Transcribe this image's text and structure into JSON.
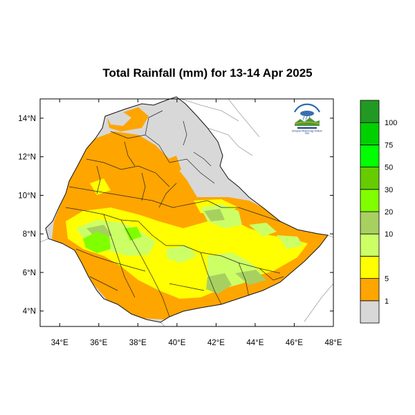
{
  "title": "Total Rainfall (mm) for 13-14 Apr 2025",
  "map": {
    "x_ticks": [
      "34°E",
      "36°E",
      "38°E",
      "40°E",
      "42°E",
      "44°E",
      "46°E",
      "48°E"
    ],
    "y_ticks": [
      "14°N",
      "12°N",
      "10°N",
      "8°N",
      "6°N",
      "4°N"
    ],
    "lon_range": [
      33,
      48
    ],
    "lat_range": [
      3.2,
      15
    ]
  },
  "colorbar": {
    "labels": [
      "1",
      "5",
      "10",
      "20",
      "30",
      "50",
      "75",
      "100"
    ],
    "colors": [
      "#d8d8d8",
      "#ffa500",
      "#ffff00",
      "#ccff66",
      "#a8d060",
      "#80ff00",
      "#66cc00",
      "#00ff00",
      "#00d000",
      "#229922"
    ]
  },
  "logo": {
    "label": "Ethiopian Meteorology Institute",
    "abbr": "EMI"
  }
}
